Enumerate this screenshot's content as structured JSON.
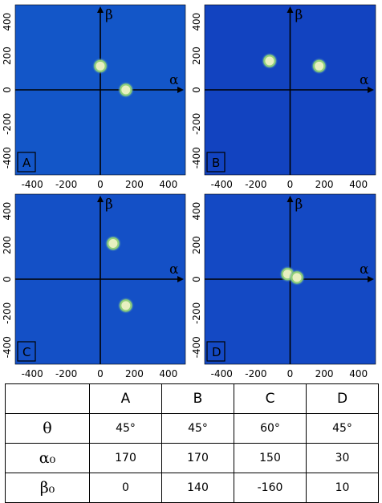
{
  "axes": {
    "x_name": "α",
    "y_name": "β"
  },
  "ticks": {
    "x": [
      "-400",
      "-200",
      "0",
      "200",
      "400"
    ],
    "y": [
      "400",
      "200",
      "0",
      "-200",
      "-400"
    ],
    "values": [
      -400,
      -200,
      0,
      200,
      400
    ]
  },
  "panels": [
    {
      "id": "A",
      "label": "A",
      "background": "#1356c8",
      "spots": [
        {
          "alpha": 0,
          "beta": 140
        },
        {
          "alpha": 150,
          "beta": 0
        }
      ]
    },
    {
      "id": "B",
      "label": "B",
      "background": "#1243c0",
      "spots": [
        {
          "alpha": -120,
          "beta": 170
        },
        {
          "alpha": 170,
          "beta": 140
        }
      ]
    },
    {
      "id": "C",
      "label": "C",
      "background": "#1450c6",
      "spots": [
        {
          "alpha": 75,
          "beta": 210
        },
        {
          "alpha": 150,
          "beta": -155
        }
      ]
    },
    {
      "id": "D",
      "label": "D",
      "background": "#1449c4",
      "spots": [
        {
          "alpha": -15,
          "beta": 30
        },
        {
          "alpha": 40,
          "beta": 10
        }
      ]
    }
  ],
  "table": {
    "headers": [
      "",
      "A",
      "B",
      "C",
      "D"
    ],
    "rows": [
      {
        "label": "θ",
        "values": [
          "45°",
          "45°",
          "60°",
          "45°"
        ]
      },
      {
        "label": "α₀",
        "values": [
          "170",
          "170",
          "150",
          "30"
        ]
      },
      {
        "label": "β₀",
        "values": [
          "0",
          "140",
          "-160",
          "10"
        ]
      }
    ]
  },
  "colors": {
    "spot_core": "#e8f0c0",
    "spot_ring": "#8fcf7a",
    "panel_border": "#000000"
  }
}
